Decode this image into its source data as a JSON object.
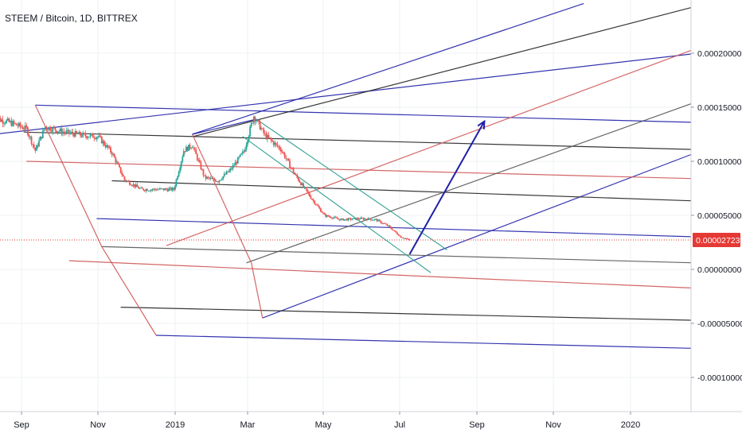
{
  "header": {
    "title": "STEEM / Bitcoin, 1D, BITTREX"
  },
  "colors": {
    "background": "#ffffff",
    "grid": "#eef0f3",
    "candle_up": "#26a69a",
    "candle_down": "#ef5350",
    "navy": "#1f1fa8",
    "black": "#222222",
    "red": "#d05555",
    "gray": "#555555",
    "teal": "#2a9d8f",
    "price_line": "#e53935",
    "axis_text": "#131722"
  },
  "chart_data": {
    "type": "candlestick",
    "title": "STEEM / Bitcoin, 1D, BITTREX",
    "x_ticks": [
      "Sep",
      "Nov",
      "2019",
      "Mar",
      "May",
      "Jul",
      "Sep",
      "Nov",
      "2020"
    ],
    "y_ticks": [
      "0.00020000",
      "0.00015000",
      "0.00010000",
      "0.00005000",
      "0.00000000",
      "-0.00005000",
      "-0.00010000"
    ],
    "y_tick_values": [
      0.0002,
      0.00015,
      0.0001,
      5e-05,
      0,
      -5e-05,
      -0.0001
    ],
    "ylim": [
      -0.000128,
      0.000246
    ],
    "current_price": {
      "label": "0.00002723",
      "value": 2.723e-05
    },
    "price_path": [
      [
        "2018-08-10",
        0.00014
      ],
      [
        "2018-08-20",
        0.000137
      ],
      [
        "2018-08-27",
        0.000134
      ],
      [
        "2018-09-05",
        0.00013
      ],
      [
        "2018-09-12",
        0.00011
      ],
      [
        "2018-09-20",
        0.000132
      ],
      [
        "2018-10-05",
        0.000127
      ],
      [
        "2018-10-20",
        0.000124
      ],
      [
        "2018-11-01",
        0.000123
      ],
      [
        "2018-11-12",
        0.000108
      ],
      [
        "2018-11-22",
        8.3e-05
      ],
      [
        "2018-12-05",
        7.4e-05
      ],
      [
        "2018-12-18",
        7.4e-05
      ],
      [
        "2018-12-31",
        7.4e-05
      ],
      [
        "2019-01-08",
        0.00011
      ],
      [
        "2019-01-15",
        0.000115
      ],
      [
        "2019-01-25",
        8.5e-05
      ],
      [
        "2019-02-05",
        8.2e-05
      ],
      [
        "2019-02-15",
        9.2e-05
      ],
      [
        "2019-02-26",
        0.000109
      ],
      [
        "2019-03-06",
        0.000142
      ],
      [
        "2019-03-15",
        0.000124
      ],
      [
        "2019-03-28",
        0.000111
      ],
      [
        "2019-04-08",
        8.8e-05
      ],
      [
        "2019-04-20",
        6.8e-05
      ],
      [
        "2019-05-02",
        5e-05
      ],
      [
        "2019-05-15",
        4.6e-05
      ],
      [
        "2019-06-01",
        4.7e-05
      ],
      [
        "2019-06-12",
        4.6e-05
      ],
      [
        "2019-06-22",
        4e-05
      ],
      [
        "2019-07-02",
        3e-05
      ],
      [
        "2019-07-09",
        2.7e-05
      ]
    ],
    "drawings": [
      {
        "color": "navy",
        "from": [
          "2018-08-10",
          0.000125
        ],
        "to": [
          "2020-03-25",
          0.000204
        ]
      },
      {
        "color": "navy",
        "from": [
          "2019-01-15",
          0.000125
        ],
        "to": [
          "2019-11-25",
          0.000246
        ]
      },
      {
        "color": "navy",
        "from": [
          "2018-09-12",
          0.000152
        ],
        "to": [
          "2020-03-25",
          0.000135
        ]
      },
      {
        "color": "navy",
        "from": [
          "2018-10-31",
          4.7e-05
        ],
        "to": [
          "2020-03-25",
          2.9e-05
        ]
      },
      {
        "color": "navy",
        "from": [
          "2018-12-17",
          -6.1e-05
        ],
        "to": [
          "2020-03-25",
          -7.4e-05
        ]
      },
      {
        "color": "navy",
        "from": [
          "2019-03-13",
          -4.5e-05
        ],
        "to": [
          "2020-03-25",
          0.000122
        ]
      },
      {
        "color": "black",
        "from": [
          "2018-09-03",
          0.000127
        ],
        "to": [
          "2020-03-25",
          0.00011
        ]
      },
      {
        "color": "black",
        "from": [
          "2018-11-12",
          8.2e-05
        ],
        "to": [
          "2020-03-25",
          6.2e-05
        ]
      },
      {
        "color": "black",
        "from": [
          "2018-11-19",
          -3.5e-05
        ],
        "to": [
          "2020-03-25",
          -4.8e-05
        ]
      },
      {
        "color": "black",
        "from": [
          "2019-01-16",
          0.000123
        ],
        "to": [
          "2020-03-02",
          0.000246
        ]
      },
      {
        "color": "red",
        "from": [
          "2018-09-05",
          0.0001
        ],
        "to": [
          "2020-03-25",
          8.3e-05
        ]
      },
      {
        "color": "red",
        "from": [
          "2018-10-09",
          8e-06
        ],
        "to": [
          "2020-03-25",
          -1.9e-05
        ]
      },
      {
        "color": "red",
        "from": [
          "2018-12-25",
          2.2e-05
        ],
        "to": [
          "2020-03-25",
          0.000218
        ]
      },
      {
        "color": "gray",
        "from": [
          "2018-11-04",
          2.1e-05
        ],
        "to": [
          "2020-03-25",
          5e-06
        ]
      },
      {
        "color": "gray",
        "from": [
          "2019-02-28",
          6e-06
        ],
        "to": [
          "2020-03-25",
          0.000168
        ]
      },
      {
        "color": "teal",
        "from": [
          "2019-03-08",
          0.000139
        ],
        "to": [
          "2019-08-08",
          1.8e-05
        ]
      },
      {
        "color": "teal",
        "from": [
          "2019-02-25",
          0.000123
        ],
        "to": [
          "2019-07-26",
          -3e-06
        ]
      },
      {
        "color": "red",
        "from": [
          "2018-09-12",
          0.000152
        ],
        "to": [
          "2018-11-04",
          2.1e-05
        ]
      },
      {
        "color": "red",
        "from": [
          "2018-11-04",
          2.1e-05
        ],
        "to": [
          "2018-12-17",
          -6.1e-05
        ]
      },
      {
        "color": "red",
        "from": [
          "2019-01-15",
          0.000125
        ],
        "to": [
          "2019-03-04",
          6e-06
        ]
      },
      {
        "color": "red",
        "from": [
          "2019-03-04",
          6e-06
        ],
        "to": [
          "2019-03-13",
          -4.5e-05
        ]
      },
      {
        "color": "navy",
        "from": [
          "2019-03-08",
          0.000139
        ],
        "to": [
          "2019-01-15",
          0.000125
        ]
      }
    ],
    "arrow": {
      "color": "navy",
      "from": [
        "2019-07-09",
        1.4e-05
      ],
      "to": [
        "2019-09-07",
        0.000137
      ]
    }
  }
}
